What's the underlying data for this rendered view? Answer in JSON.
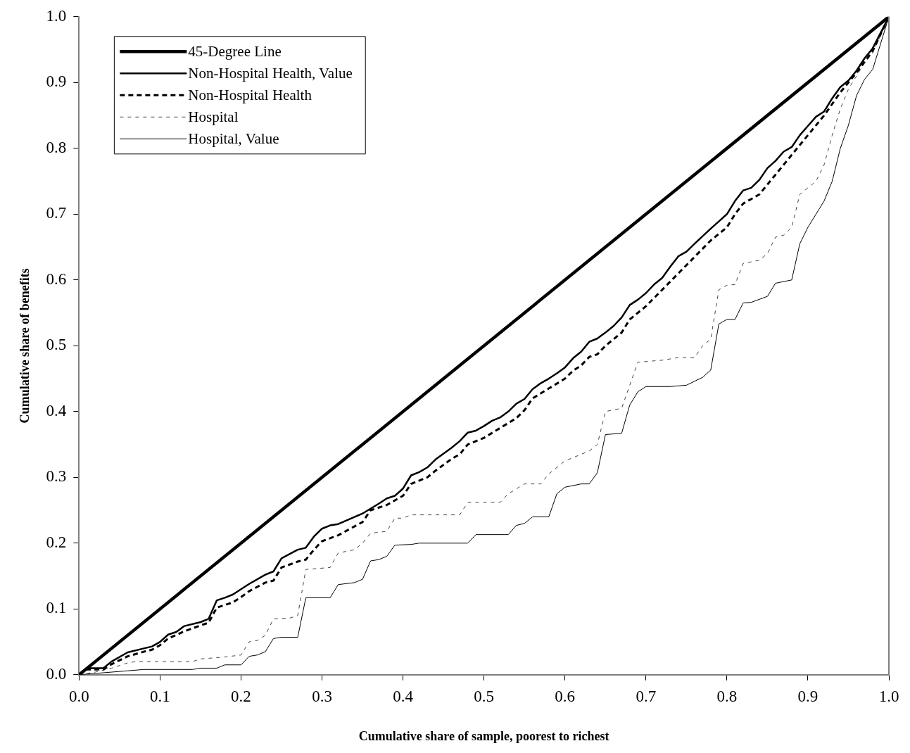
{
  "chart_data": {
    "type": "line",
    "xlabel": "Cumulative share of sample, poorest to richest",
    "ylabel": "Cumulative share of benefits",
    "xlim": [
      0,
      1
    ],
    "ylim": [
      0,
      1
    ],
    "xticks": [
      {
        "value": 0,
        "label": "0.0"
      },
      0.1,
      0.2,
      0.3,
      0.4,
      0.5,
      0.6,
      0.7,
      0.8,
      0.9,
      {
        "value": 1,
        "label": "1.0"
      }
    ],
    "yticks": [
      {
        "value": 0,
        "label": "0.0"
      },
      0.1,
      0.2,
      0.3,
      0.4,
      0.5,
      0.6,
      0.7,
      0.8,
      0.9,
      {
        "value": 1,
        "label": "1.0"
      }
    ],
    "grid": false,
    "legend": "top left",
    "marker": "none",
    "series": [
      {
        "name": "45-Degree Line",
        "color": "#000000",
        "line_style": "solid",
        "x": [
          0,
          1
        ],
        "values": [
          0,
          1
        ]
      },
      {
        "name": "Non-Hospital Health, Value",
        "color": "#000000",
        "line_style": "solid",
        "x": [
          0,
          0.01,
          0.03,
          0.04,
          0.06,
          0.08,
          0.09,
          0.1,
          0.11,
          0.12,
          0.13,
          0.15,
          0.16,
          0.17,
          0.18,
          0.19,
          0.2,
          0.21,
          0.23,
          0.24,
          0.25,
          0.27,
          0.28,
          0.29,
          0.3,
          0.31,
          0.32,
          0.35,
          0.37,
          0.38,
          0.39,
          0.4,
          0.41,
          0.42,
          0.43,
          0.44,
          0.46,
          0.47,
          0.48,
          0.49,
          0.5,
          0.51,
          0.52,
          0.53,
          0.54,
          0.55,
          0.56,
          0.57,
          0.58,
          0.59,
          0.6,
          0.61,
          0.62,
          0.63,
          0.64,
          0.65,
          0.66,
          0.67,
          0.68,
          0.69,
          0.7,
          0.71,
          0.72,
          0.73,
          0.74,
          0.75,
          0.76,
          0.78,
          0.79,
          0.8,
          0.81,
          0.82,
          0.83,
          0.84,
          0.85,
          0.86,
          0.87,
          0.88,
          0.89,
          0.9,
          0.91,
          0.92,
          0.93,
          0.94,
          0.95,
          0.96,
          0.97,
          0.98,
          1
        ],
        "values": [
          0,
          0.01,
          0.01,
          0.02,
          0.034,
          0.04,
          0.043,
          0.05,
          0.061,
          0.065,
          0.074,
          0.08,
          0.085,
          0.113,
          0.117,
          0.122,
          0.13,
          0.138,
          0.152,
          0.157,
          0.177,
          0.19,
          0.193,
          0.21,
          0.222,
          0.227,
          0.229,
          0.245,
          0.26,
          0.268,
          0.272,
          0.283,
          0.303,
          0.308,
          0.315,
          0.327,
          0.345,
          0.355,
          0.368,
          0.371,
          0.378,
          0.386,
          0.391,
          0.4,
          0.412,
          0.419,
          0.434,
          0.443,
          0.45,
          0.458,
          0.467,
          0.481,
          0.491,
          0.506,
          0.511,
          0.52,
          0.53,
          0.543,
          0.562,
          0.57,
          0.58,
          0.593,
          0.603,
          0.62,
          0.636,
          0.643,
          0.655,
          0.678,
          0.689,
          0.7,
          0.72,
          0.736,
          0.74,
          0.752,
          0.77,
          0.781,
          0.795,
          0.802,
          0.82,
          0.834,
          0.848,
          0.856,
          0.876,
          0.893,
          0.903,
          0.918,
          0.937,
          0.952,
          1
        ]
      },
      {
        "name": "Non-Hospital Health",
        "color": "#000000",
        "line_style": "dashed",
        "x": [
          0,
          0.01,
          0.03,
          0.04,
          0.06,
          0.08,
          0.09,
          0.1,
          0.11,
          0.13,
          0.15,
          0.16,
          0.17,
          0.19,
          0.2,
          0.21,
          0.23,
          0.24,
          0.25,
          0.27,
          0.28,
          0.29,
          0.3,
          0.32,
          0.35,
          0.36,
          0.38,
          0.39,
          0.4,
          0.41,
          0.43,
          0.44,
          0.46,
          0.47,
          0.48,
          0.5,
          0.52,
          0.54,
          0.55,
          0.56,
          0.58,
          0.6,
          0.61,
          0.62,
          0.63,
          0.64,
          0.65,
          0.67,
          0.68,
          0.7,
          0.72,
          0.74,
          0.76,
          0.78,
          0.8,
          0.81,
          0.82,
          0.84,
          0.86,
          0.88,
          0.9,
          0.92,
          0.94,
          0.96,
          0.98,
          1
        ],
        "values": [
          0,
          0.008,
          0.008,
          0.016,
          0.028,
          0.035,
          0.038,
          0.045,
          0.055,
          0.066,
          0.075,
          0.079,
          0.102,
          0.11,
          0.118,
          0.127,
          0.14,
          0.143,
          0.163,
          0.172,
          0.175,
          0.19,
          0.203,
          0.212,
          0.232,
          0.25,
          0.258,
          0.265,
          0.272,
          0.29,
          0.3,
          0.31,
          0.328,
          0.335,
          0.35,
          0.36,
          0.375,
          0.39,
          0.402,
          0.42,
          0.435,
          0.45,
          0.462,
          0.47,
          0.483,
          0.487,
          0.5,
          0.52,
          0.54,
          0.56,
          0.585,
          0.61,
          0.635,
          0.66,
          0.68,
          0.7,
          0.716,
          0.73,
          0.76,
          0.79,
          0.82,
          0.85,
          0.885,
          0.915,
          0.948,
          1
        ]
      },
      {
        "name": "Hospital",
        "color": "#444444",
        "line_style": "dashed",
        "x": [
          0,
          0.02,
          0.04,
          0.06,
          0.07,
          0.1,
          0.14,
          0.15,
          0.18,
          0.2,
          0.21,
          0.22,
          0.23,
          0.24,
          0.26,
          0.27,
          0.28,
          0.31,
          0.32,
          0.34,
          0.35,
          0.36,
          0.38,
          0.39,
          0.4,
          0.41,
          0.47,
          0.48,
          0.52,
          0.53,
          0.55,
          0.57,
          0.58,
          0.6,
          0.62,
          0.63,
          0.64,
          0.65,
          0.67,
          0.68,
          0.69,
          0.72,
          0.74,
          0.76,
          0.77,
          0.78,
          0.79,
          0.8,
          0.81,
          0.82,
          0.84,
          0.85,
          0.86,
          0.87,
          0.88,
          0.89,
          0.91,
          0.92,
          0.93,
          0.94,
          0.95,
          0.96,
          0.97,
          0.98,
          1
        ],
        "values": [
          0,
          0.004,
          0.01,
          0.018,
          0.02,
          0.02,
          0.02,
          0.024,
          0.027,
          0.03,
          0.05,
          0.052,
          0.06,
          0.085,
          0.086,
          0.09,
          0.16,
          0.163,
          0.185,
          0.19,
          0.2,
          0.215,
          0.218,
          0.238,
          0.238,
          0.243,
          0.243,
          0.262,
          0.262,
          0.275,
          0.29,
          0.29,
          0.305,
          0.325,
          0.335,
          0.34,
          0.35,
          0.4,
          0.405,
          0.44,
          0.475,
          0.478,
          0.482,
          0.482,
          0.5,
          0.51,
          0.585,
          0.592,
          0.593,
          0.625,
          0.63,
          0.64,
          0.665,
          0.668,
          0.68,
          0.73,
          0.75,
          0.775,
          0.82,
          0.86,
          0.89,
          0.91,
          0.93,
          0.945,
          1
        ]
      },
      {
        "name": "Hospital, Value",
        "color": "#000000",
        "line_style": "solid",
        "x": [
          0,
          0.03,
          0.06,
          0.08,
          0.14,
          0.15,
          0.17,
          0.18,
          0.2,
          0.21,
          0.22,
          0.23,
          0.24,
          0.25,
          0.27,
          0.28,
          0.31,
          0.32,
          0.34,
          0.35,
          0.36,
          0.37,
          0.38,
          0.39,
          0.41,
          0.42,
          0.48,
          0.49,
          0.53,
          0.54,
          0.55,
          0.56,
          0.58,
          0.59,
          0.6,
          0.62,
          0.63,
          0.64,
          0.65,
          0.67,
          0.68,
          0.69,
          0.7,
          0.73,
          0.75,
          0.77,
          0.78,
          0.79,
          0.8,
          0.81,
          0.82,
          0.83,
          0.85,
          0.86,
          0.88,
          0.89,
          0.9,
          0.91,
          0.92,
          0.93,
          0.94,
          0.95,
          0.96,
          0.97,
          0.98,
          1
        ],
        "values": [
          0,
          0.003,
          0.006,
          0.008,
          0.008,
          0.01,
          0.01,
          0.015,
          0.015,
          0.028,
          0.03,
          0.035,
          0.055,
          0.057,
          0.057,
          0.117,
          0.117,
          0.137,
          0.14,
          0.145,
          0.173,
          0.175,
          0.18,
          0.197,
          0.198,
          0.2,
          0.2,
          0.213,
          0.213,
          0.227,
          0.23,
          0.24,
          0.24,
          0.275,
          0.285,
          0.29,
          0.29,
          0.307,
          0.365,
          0.367,
          0.41,
          0.43,
          0.438,
          0.438,
          0.44,
          0.452,
          0.463,
          0.533,
          0.54,
          0.54,
          0.565,
          0.566,
          0.575,
          0.595,
          0.6,
          0.655,
          0.68,
          0.7,
          0.72,
          0.75,
          0.8,
          0.835,
          0.88,
          0.905,
          0.92,
          1
        ]
      }
    ]
  }
}
